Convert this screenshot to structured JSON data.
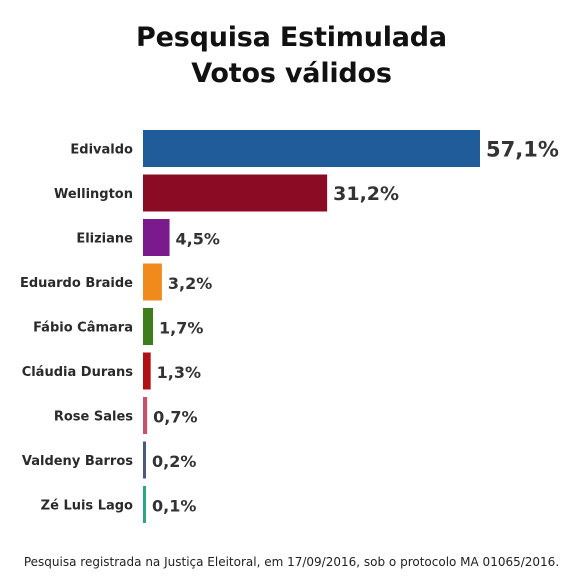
{
  "chart_data": {
    "type": "bar",
    "orientation": "horizontal",
    "title": "Pesquisa Estimulada",
    "subtitle": "Votos válidos",
    "categories": [
      "Edivaldo",
      "Wellington",
      "Eliziane",
      "Eduardo Braide",
      "Fábio Câmara",
      "Cláudia Durans",
      "Rose Sales",
      "Valdeny Barros",
      "Zé Luis Lago"
    ],
    "values": [
      57.1,
      31.2,
      4.5,
      3.2,
      1.7,
      1.3,
      0.7,
      0.2,
      0.1
    ],
    "value_labels": [
      "57,1%",
      "31,2%",
      "4,5%",
      "3,2%",
      "1,7%",
      "1,3%",
      "0,7%",
      "0,2%",
      "0,1%"
    ],
    "colors": [
      "#1f5c99",
      "#8b0a24",
      "#7b1a8c",
      "#f08a1c",
      "#3f7d1c",
      "#b01016",
      "#c8506a",
      "#4a5a78",
      "#2aa883"
    ],
    "xlim": [
      0,
      57.1
    ],
    "grid": false,
    "legend": false
  },
  "footnote": "Pesquisa registrada na Justiça Eleitoral, em 17/09/2016, sob o protocolo MA 01065/2016."
}
